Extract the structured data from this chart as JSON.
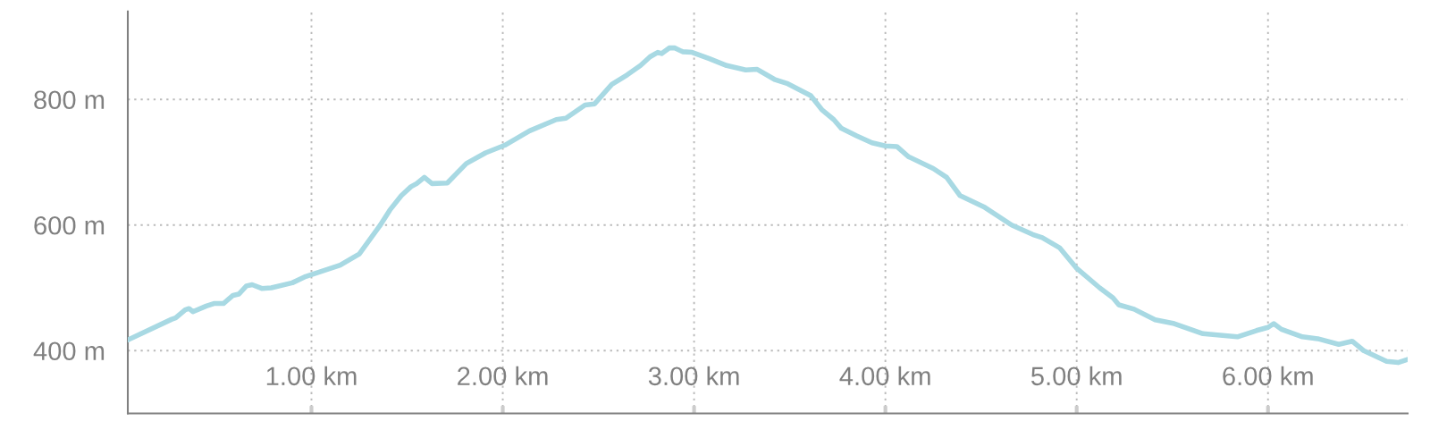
{
  "chart_data": {
    "type": "line",
    "grid": true,
    "marker": "none",
    "line_style": "solid",
    "xlim": [
      0.04,
      6.73
    ],
    "ylim": [
      300,
      940
    ],
    "xticks": [
      {
        "value": 1,
        "label": "1.00 km"
      },
      {
        "value": 2,
        "label": "2.00 km"
      },
      {
        "value": 3,
        "label": "3.00 km"
      },
      {
        "value": 4,
        "label": "4.00 km"
      },
      {
        "value": 5,
        "label": "5.00 km"
      },
      {
        "value": 6,
        "label": "6.00 km"
      }
    ],
    "yticks": [
      {
        "value": 400,
        "label": "400 m"
      },
      {
        "value": 600,
        "label": "600 m"
      },
      {
        "value": 800,
        "label": "800 m"
      }
    ],
    "x": [
      0.04,
      0.27,
      0.29,
      0.34,
      0.36,
      0.38,
      0.45,
      0.49,
      0.54,
      0.59,
      0.62,
      0.66,
      0.69,
      0.74,
      0.79,
      0.9,
      0.97,
      1.15,
      1.25,
      1.36,
      1.41,
      1.47,
      1.52,
      1.55,
      1.59,
      1.63,
      1.71,
      1.81,
      1.91,
      2.01,
      2.14,
      2.28,
      2.33,
      2.43,
      2.48,
      2.57,
      2.65,
      2.72,
      2.77,
      2.81,
      2.83,
      2.87,
      2.9,
      2.94,
      2.99,
      3.08,
      3.17,
      3.27,
      3.33,
      3.42,
      3.49,
      3.61,
      3.67,
      3.73,
      3.77,
      3.85,
      3.93,
      4.0,
      4.06,
      4.12,
      4.25,
      4.32,
      4.39,
      4.52,
      4.66,
      4.77,
      4.82,
      4.91,
      5.0,
      5.12,
      5.19,
      5.22,
      5.3,
      5.41,
      5.51,
      5.66,
      5.84,
      5.94,
      6.0,
      6.03,
      6.07,
      6.18,
      6.26,
      6.37,
      6.44,
      6.5,
      6.55,
      6.62,
      6.68,
      6.73
    ],
    "series": [
      {
        "color": "#a8d9e3",
        "values": [
          417,
          450,
          452,
          465,
          467,
          462,
          471,
          475,
          475,
          488,
          490,
          503,
          505,
          499,
          500,
          508,
          518,
          536,
          554,
          600,
          624,
          647,
          661,
          666,
          676,
          666,
          667,
          698,
          715,
          727,
          750,
          768,
          770,
          791,
          793,
          824,
          839,
          854,
          868,
          875,
          873,
          882,
          882,
          876,
          875,
          865,
          854,
          847,
          848,
          832,
          825,
          806,
          783,
          768,
          754,
          742,
          731,
          726,
          725,
          709,
          690,
          676,
          647,
          628,
          600,
          585,
          580,
          564,
          531,
          500,
          484,
          473,
          466,
          449,
          443,
          427,
          422,
          432,
          437,
          443,
          434,
          422,
          419,
          410,
          415,
          400,
          393,
          383,
          381,
          386
        ]
      }
    ]
  }
}
